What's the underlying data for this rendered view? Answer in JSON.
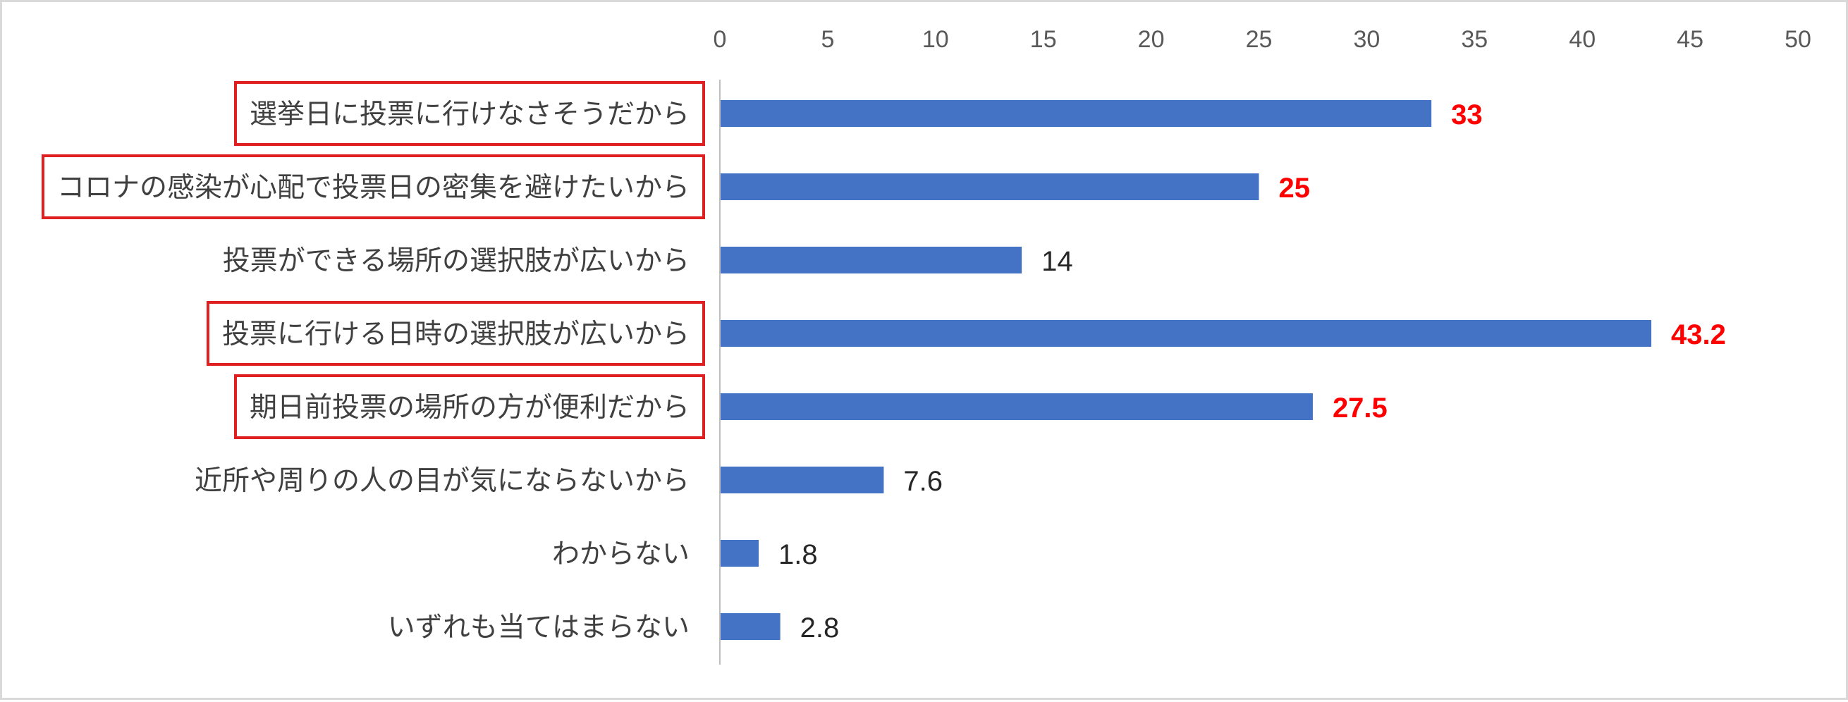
{
  "chart_data": {
    "type": "bar",
    "orientation": "horizontal",
    "title": "",
    "xlabel": "",
    "ylabel": "",
    "xlim": [
      0,
      50
    ],
    "x_ticks": [
      "0",
      "5",
      "10",
      "15",
      "20",
      "25",
      "30",
      "35",
      "40",
      "45",
      "50"
    ],
    "categories": [
      "選挙日に投票に行けなさそうだから",
      "コロナの感染が心配で投票日の密集を避けたいから",
      "投票ができる場所の選択肢が広いから",
      "投票に行ける日時の選択肢が広いから",
      "期日前投票の場所の方が便利だから",
      "近所や周りの人の目が気にならないから",
      "わからない",
      "いずれも当てはまらない"
    ],
    "values": [
      33,
      25,
      14,
      43.2,
      27.5,
      7.6,
      1.8,
      2.8
    ],
    "value_labels": [
      "33",
      "25",
      "14",
      "43.2",
      "27.5",
      "7.6",
      "1.8",
      "2.8"
    ],
    "highlighted": [
      true,
      true,
      false,
      true,
      true,
      false,
      false,
      false
    ],
    "grid": false,
    "legend": "none",
    "colors": {
      "bar": "#4472c4",
      "highlight_box": "#e02020",
      "highlight_label": "#ff0000",
      "axis": "#bfbfbf"
    }
  }
}
